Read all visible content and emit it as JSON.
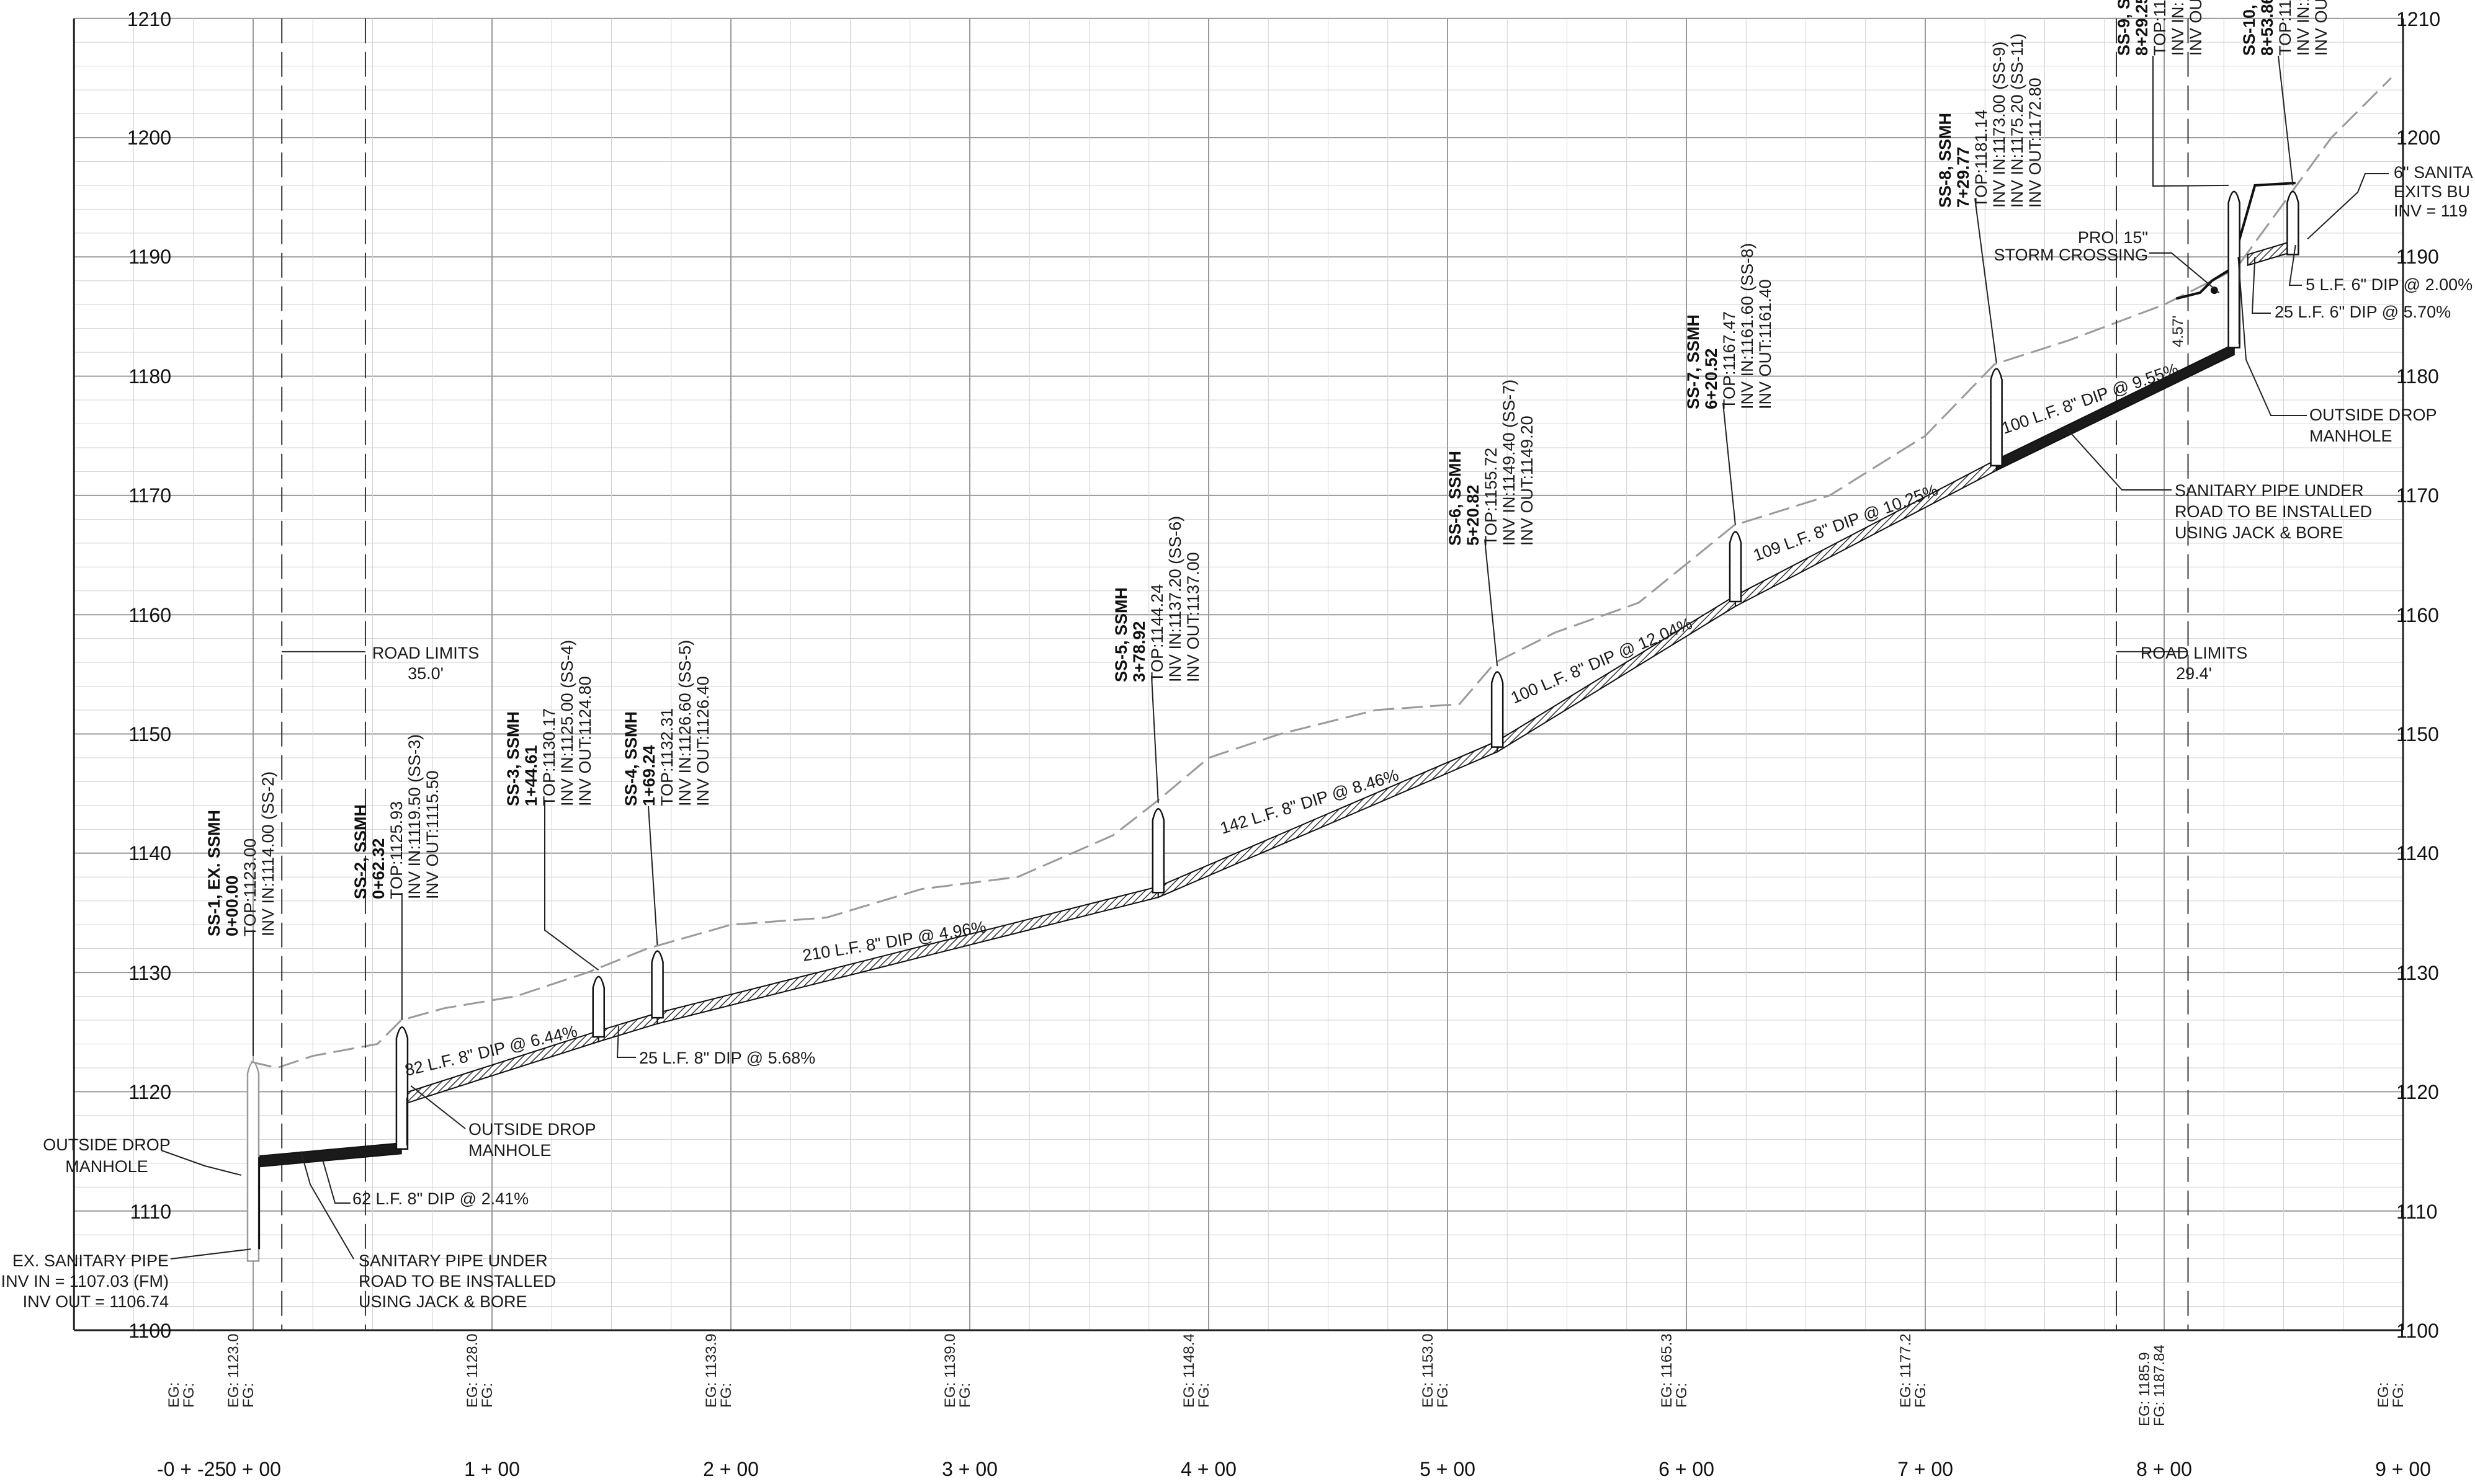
{
  "elevation_labels": [
    "1100",
    "1110",
    "1120",
    "1130",
    "1140",
    "1150",
    "1160",
    "1170",
    "1180",
    "1190",
    "1200",
    "1210"
  ],
  "station_labels": [
    "-0 + -25",
    "0 + 00",
    "1 + 00",
    "2 + 00",
    "3 + 00",
    "4 + 00",
    "5 + 00",
    "6 + 00",
    "7 + 00",
    "8 + 00",
    "9 + 00"
  ],
  "grade_rows": [
    {
      "station": -25,
      "eg": "EG:",
      "fg": "FG:"
    },
    {
      "station": 0,
      "eg": "EG: 1123.0",
      "fg": "FG:"
    },
    {
      "station": 100,
      "eg": "EG: 1128.0",
      "fg": "FG:"
    },
    {
      "station": 200,
      "eg": "EG: 1133.9",
      "fg": "FG:"
    },
    {
      "station": 300,
      "eg": "EG: 1139.0",
      "fg": "FG:"
    },
    {
      "station": 400,
      "eg": "EG: 1148.4",
      "fg": "FG:"
    },
    {
      "station": 500,
      "eg": "EG: 1153.0",
      "fg": "FG:"
    },
    {
      "station": 600,
      "eg": "EG: 1165.3",
      "fg": "FG:"
    },
    {
      "station": 700,
      "eg": "EG: 1177.2",
      "fg": "FG:"
    },
    {
      "station": 800,
      "eg": "EG: 1185.9",
      "fg": "FG: 1187.84"
    },
    {
      "station": 900,
      "eg": "EG:",
      "fg": "FG:"
    }
  ],
  "manholes": [
    {
      "id": "SS-1",
      "title": "SS-1, EX. SSMH",
      "station_label": "0+00.00",
      "lines": [
        "TOP:1123.00",
        "INV IN:1114.00 (SS-2)"
      ],
      "station": 0,
      "top": 1123.0
    },
    {
      "id": "SS-2",
      "title": "SS-2, SSMH",
      "station_label": "0+62.32",
      "lines": [
        "TOP:1125.93",
        "INV IN:1119.50 (SS-3)",
        "INV OUT:1115.50"
      ],
      "station": 62.32,
      "top": 1125.93
    },
    {
      "id": "SS-3",
      "title": "SS-3, SSMH",
      "station_label": "1+44.61",
      "lines": [
        "TOP:1130.17",
        "INV IN:1125.00 (SS-4)",
        "INV OUT:1124.80"
      ],
      "station": 144.61,
      "top": 1130.17
    },
    {
      "id": "SS-4",
      "title": "SS-4, SSMH",
      "station_label": "1+69.24",
      "lines": [
        "TOP:1132.31",
        "INV IN:1126.60 (SS-5)",
        "INV OUT:1126.40"
      ],
      "station": 169.24,
      "top": 1132.31
    },
    {
      "id": "SS-5",
      "title": "SS-5, SSMH",
      "station_label": "3+78.92",
      "lines": [
        "TOP:1144.24",
        "INV IN:1137.20 (SS-6)",
        "INV OUT:1137.00"
      ],
      "station": 378.92,
      "top": 1144.24
    },
    {
      "id": "SS-6",
      "title": "SS-6, SSMH",
      "station_label": "5+20.82",
      "lines": [
        "TOP:1155.72",
        "INV IN:1149.40 (SS-7)",
        "INV OUT:1149.20"
      ],
      "station": 520.82,
      "top": 1155.72
    },
    {
      "id": "SS-7",
      "title": "SS-7, SSMH",
      "station_label": "6+20.52",
      "lines": [
        "TOP:1167.47",
        "INV IN:1161.60 (SS-8)",
        "INV OUT:1161.40"
      ],
      "station": 620.52,
      "top": 1167.47
    },
    {
      "id": "SS-8",
      "title": "SS-8, SSMH",
      "station_label": "7+29.77",
      "lines": [
        "TOP:1181.14",
        "INV IN:1173.00 (SS-9)",
        "INV IN:1175.20 (SS-11)",
        "INV OUT:1172.80"
      ],
      "station": 729.77,
      "top": 1181.14
    },
    {
      "id": "SS-9",
      "title": "SS-9, S",
      "station_label": "8+29.25",
      "lines": [
        "TOP:11",
        "INV IN:",
        "INV OU"
      ],
      "station": 829.25,
      "top": 1196.0
    },
    {
      "id": "SS-10",
      "title": "SS-10, C",
      "station_label": "8+53.86",
      "lines": [
        "TOP:119",
        "INV IN:1",
        "INV OUT"
      ],
      "station": 853.86,
      "top": 1196.0
    }
  ],
  "pipe_labels": [
    {
      "text": "82 L.F. 8\" DIP @ 6.44%"
    },
    {
      "text": "25 L.F. 8\" DIP @ 5.68%"
    },
    {
      "text": "210 L.F. 8\" DIP @ 4.96%"
    },
    {
      "text": "142 L.F. 8\" DIP @ 8.46%"
    },
    {
      "text": "100 L.F. 8\" DIP @ 12.04%"
    },
    {
      "text": "109 L.F. 8\" DIP @ 10.25%"
    },
    {
      "text": "100 L.F. 8\" DIP @ 9.55%"
    },
    {
      "text": "62 L.F. 8\" DIP @ 2.41%"
    },
    {
      "text": "5 L.F. 6\" DIP @ 2.00%"
    },
    {
      "text": "25 L.F. 6\" DIP @ 5.70%"
    }
  ],
  "callouts": {
    "road_limits_left_title": "ROAD LIMITS",
    "road_limits_left_value": "35.0'",
    "road_limits_right_title": "ROAD LIMITS",
    "road_limits_right_value": "29.4'",
    "outside_drop_left_1": "OUTSIDE DROP",
    "outside_drop_left_2": "MANHOLE",
    "outside_drop_mid_1": "OUTSIDE DROP",
    "outside_drop_mid_2": "MANHOLE",
    "outside_drop_right_1": "OUTSIDE DROP",
    "outside_drop_right_2": "MANHOLE",
    "ex_pipe_1": "EX. SANITARY PIPE",
    "ex_pipe_2": "INV IN = 1107.03 (FM)",
    "ex_pipe_3": "INV OUT = 1106.74",
    "jack_bore_left_1": "SANITARY PIPE UNDER",
    "jack_bore_left_2": "ROAD TO BE INSTALLED",
    "jack_bore_left_3": "USING JACK & BORE",
    "jack_bore_right_1": "SANITARY PIPE UNDER",
    "jack_bore_right_2": "ROAD TO BE INSTALLED",
    "jack_bore_right_3": "USING JACK & BORE",
    "storm_1": "PRO. 15\"",
    "storm_2": "STORM CROSSING",
    "storm_dim": "4.57'",
    "exits_1": "6\" SANITA",
    "exits_2": "EXITS BU",
    "exits_3": "INV = 119"
  }
}
